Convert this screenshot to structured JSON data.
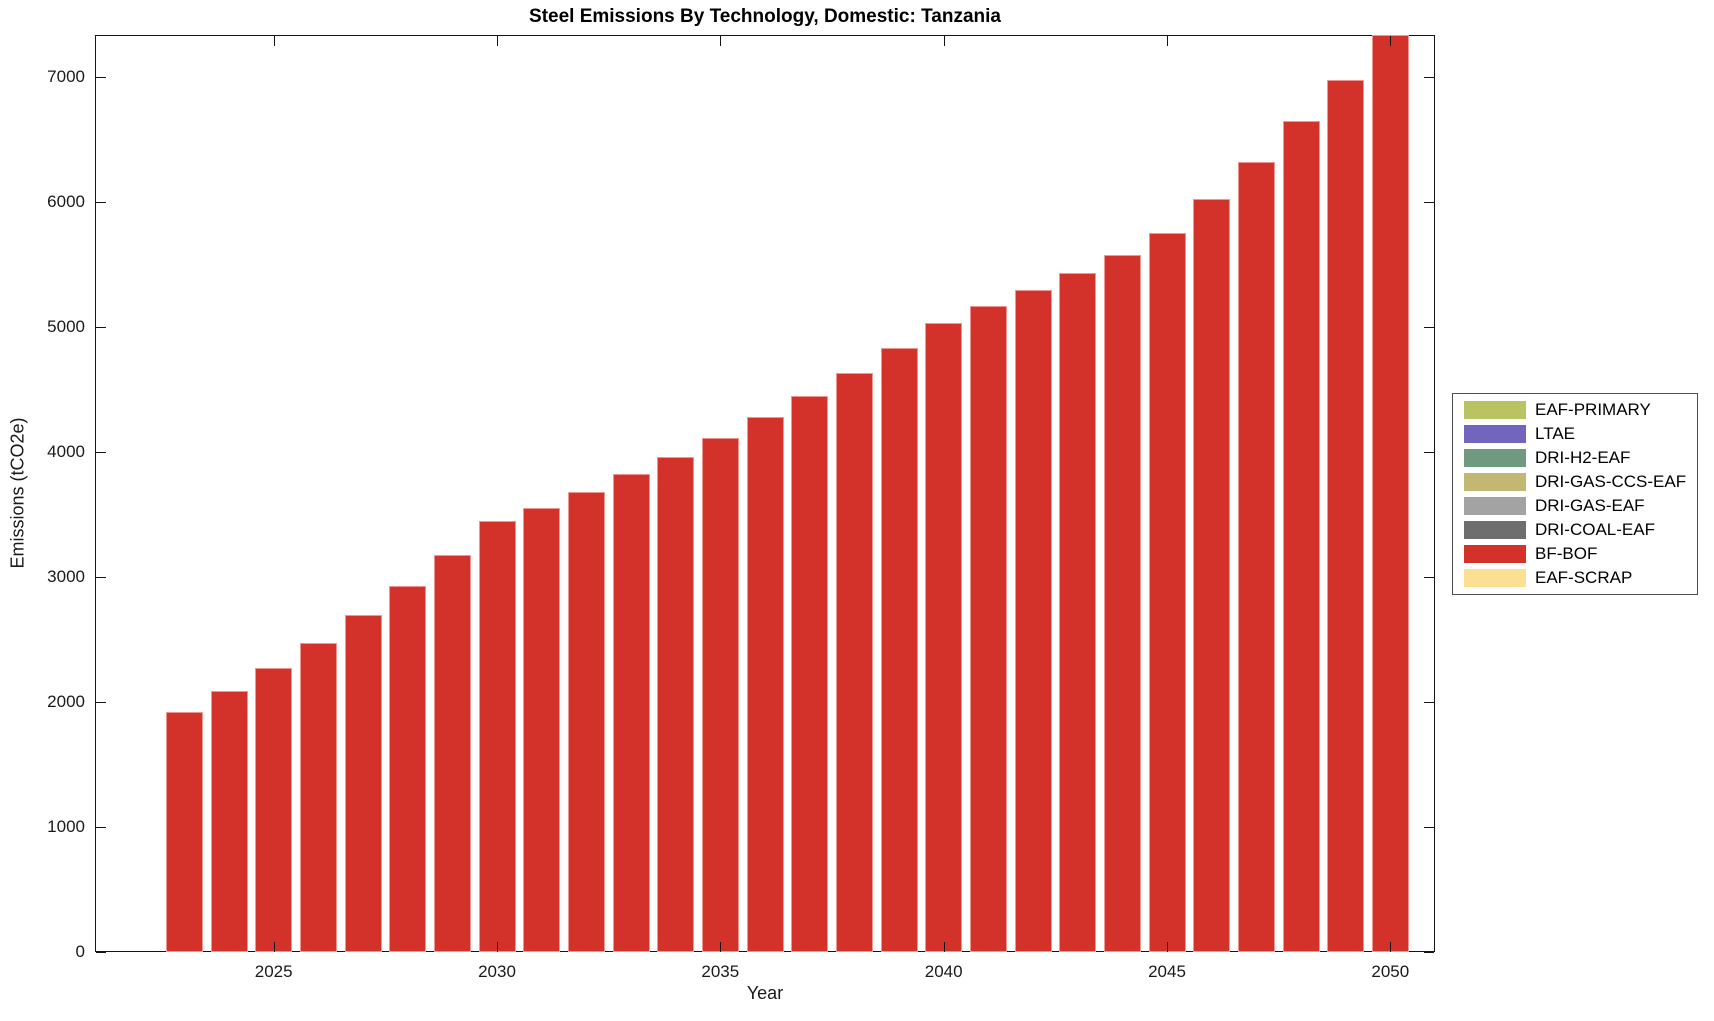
{
  "figure": {
    "title": "Steel Emissions By Technology, Domestic: Tanzania",
    "xlabel": "Year",
    "ylabel": "Emissions (tCO2e)"
  },
  "chart_data": {
    "type": "bar",
    "stacked": true,
    "title": "Steel Emissions By Technology, Domestic: Tanzania",
    "xlabel": "Year",
    "ylabel": "Emissions (tCO2e)",
    "grid": false,
    "x": [
      2023,
      2024,
      2025,
      2026,
      2027,
      2028,
      2029,
      2030,
      2031,
      2032,
      2033,
      2034,
      2035,
      2036,
      2037,
      2038,
      2039,
      2040,
      2041,
      2042,
      2043,
      2044,
      2045,
      2046,
      2047,
      2048,
      2049,
      2050
    ],
    "series": [
      {
        "name": "BF-BOF",
        "color": "#d2322a",
        "values": [
          1920,
          2090,
          2270,
          2470,
          2695,
          2930,
          3175,
          3450,
          3550,
          3680,
          3825,
          3960,
          4110,
          4280,
          4450,
          4630,
          4830,
          5035,
          5170,
          5300,
          5430,
          5575,
          5750,
          6025,
          6320,
          6650,
          6975,
          7336
        ]
      },
      {
        "name": "EAF-PRIMARY",
        "color": "#b9c361",
        "values": [
          0,
          0,
          0,
          0,
          0,
          0,
          0,
          0,
          0,
          0,
          0,
          0,
          0,
          0,
          0,
          0,
          0,
          0,
          0,
          0,
          0,
          0,
          0,
          0,
          0,
          0,
          0,
          0
        ]
      },
      {
        "name": "LTAE",
        "color": "#7165bd",
        "values": [
          0,
          0,
          0,
          0,
          0,
          0,
          0,
          0,
          0,
          0,
          0,
          0,
          0,
          0,
          0,
          0,
          0,
          0,
          0,
          0,
          0,
          0,
          0,
          0,
          0,
          0,
          0,
          0
        ]
      },
      {
        "name": "DRI-H2-EAF",
        "color": "#6f9a80",
        "values": [
          0,
          0,
          0,
          0,
          0,
          0,
          0,
          0,
          0,
          0,
          0,
          0,
          0,
          0,
          0,
          0,
          0,
          0,
          0,
          0,
          0,
          0,
          0,
          0,
          0,
          0,
          0,
          0
        ]
      },
      {
        "name": "DRI-GAS-CCS-EAF",
        "color": "#c3b873",
        "values": [
          0,
          0,
          0,
          0,
          0,
          0,
          0,
          0,
          0,
          0,
          0,
          0,
          0,
          0,
          0,
          0,
          0,
          0,
          0,
          0,
          0,
          0,
          0,
          0,
          0,
          0,
          0,
          0
        ]
      },
      {
        "name": "DRI-GAS-EAF",
        "color": "#a3a3a3",
        "values": [
          0,
          0,
          0,
          0,
          0,
          0,
          0,
          0,
          0,
          0,
          0,
          0,
          0,
          0,
          0,
          0,
          0,
          0,
          0,
          0,
          0,
          0,
          0,
          0,
          0,
          0,
          0,
          0
        ]
      },
      {
        "name": "DRI-COAL-EAF",
        "color": "#6e6e6e",
        "values": [
          0,
          0,
          0,
          0,
          0,
          0,
          0,
          0,
          0,
          0,
          0,
          0,
          0,
          0,
          0,
          0,
          0,
          0,
          0,
          0,
          0,
          0,
          0,
          0,
          0,
          0,
          0,
          0
        ]
      },
      {
        "name": "EAF-SCRAP",
        "color": "#fbe093",
        "values": [
          0,
          0,
          0,
          0,
          0,
          0,
          0,
          0,
          0,
          0,
          0,
          0,
          0,
          0,
          0,
          0,
          0,
          0,
          0,
          0,
          0,
          0,
          0,
          0,
          0,
          0,
          0,
          0
        ]
      }
    ],
    "legend": {
      "position": "right-outside",
      "entries": [
        {
          "label": "EAF-PRIMARY",
          "color": "#b9c361"
        },
        {
          "label": "LTAE",
          "color": "#7165bd"
        },
        {
          "label": "DRI-H2-EAF",
          "color": "#6f9a80"
        },
        {
          "label": "DRI-GAS-CCS-EAF",
          "color": "#c3b873"
        },
        {
          "label": "DRI-GAS-EAF",
          "color": "#a3a3a3"
        },
        {
          "label": "DRI-COAL-EAF",
          "color": "#6e6e6e"
        },
        {
          "label": "BF-BOF",
          "color": "#d2322a"
        },
        {
          "label": "EAF-SCRAP",
          "color": "#fbe093"
        }
      ]
    },
    "xlim": [
      2021,
      2051
    ],
    "ylim": [
      0,
      7336
    ],
    "xticks": [
      2025,
      2030,
      2035,
      2040,
      2045,
      2050
    ],
    "yticks": [
      0,
      1000,
      2000,
      3000,
      4000,
      5000,
      6000,
      7000
    ]
  }
}
